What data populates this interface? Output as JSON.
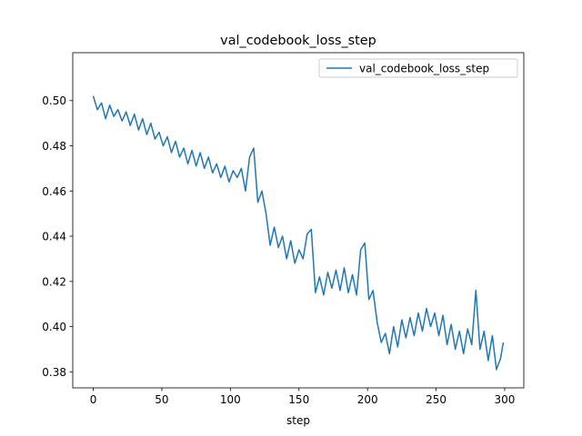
{
  "chart_data": {
    "type": "line",
    "title": "val_codebook_loss_step",
    "xlabel": "step",
    "x": [
      0,
      3,
      6,
      9,
      12,
      15,
      18,
      21,
      24,
      27,
      30,
      33,
      36,
      39,
      42,
      45,
      48,
      51,
      54,
      57,
      60,
      63,
      66,
      69,
      72,
      75,
      78,
      81,
      84,
      87,
      90,
      93,
      96,
      99,
      102,
      105,
      108,
      111,
      114,
      117,
      120,
      123,
      126,
      129,
      132,
      135,
      138,
      141,
      144,
      147,
      150,
      153,
      156,
      159,
      162,
      165,
      168,
      171,
      174,
      177,
      180,
      183,
      186,
      189,
      192,
      195,
      198,
      201,
      204,
      207,
      210,
      213,
      216,
      219,
      222,
      225,
      228,
      231,
      234,
      237,
      240,
      243,
      246,
      249,
      252,
      255,
      258,
      261,
      264,
      267,
      270,
      273,
      276,
      279,
      282,
      285,
      288,
      291,
      294,
      297,
      299
    ],
    "series": [
      {
        "name": "val_codebook_loss_step",
        "color": "#1f77b4",
        "values": [
          0.502,
          0.496,
          0.499,
          0.492,
          0.498,
          0.493,
          0.496,
          0.491,
          0.495,
          0.489,
          0.494,
          0.487,
          0.492,
          0.485,
          0.49,
          0.483,
          0.486,
          0.48,
          0.484,
          0.477,
          0.482,
          0.475,
          0.479,
          0.472,
          0.478,
          0.471,
          0.477,
          0.47,
          0.475,
          0.468,
          0.472,
          0.466,
          0.471,
          0.464,
          0.469,
          0.466,
          0.47,
          0.46,
          0.475,
          0.479,
          0.455,
          0.46,
          0.45,
          0.436,
          0.444,
          0.435,
          0.44,
          0.43,
          0.438,
          0.428,
          0.434,
          0.43,
          0.441,
          0.443,
          0.415,
          0.422,
          0.414,
          0.424,
          0.417,
          0.425,
          0.416,
          0.426,
          0.415,
          0.423,
          0.414,
          0.434,
          0.437,
          0.412,
          0.416,
          0.402,
          0.393,
          0.397,
          0.388,
          0.4,
          0.391,
          0.403,
          0.395,
          0.404,
          0.396,
          0.406,
          0.398,
          0.408,
          0.4,
          0.406,
          0.396,
          0.405,
          0.392,
          0.401,
          0.39,
          0.398,
          0.388,
          0.399,
          0.392,
          0.416,
          0.39,
          0.398,
          0.385,
          0.396,
          0.381,
          0.386,
          0.393
        ]
      }
    ],
    "xlim": [
      -14.95,
      313.95
    ],
    "xticks": [
      0,
      50,
      100,
      150,
      200,
      250,
      300
    ],
    "ylim": [
      0.3729,
      0.5212
    ],
    "yticks": [
      0.38,
      {
        "value": 0.4,
        "label": "0.40"
      },
      0.42,
      0.44,
      0.46,
      0.48,
      {
        "value": 0.5,
        "label": "0.50"
      }
    ],
    "grid": false,
    "legend": "upper-right"
  }
}
